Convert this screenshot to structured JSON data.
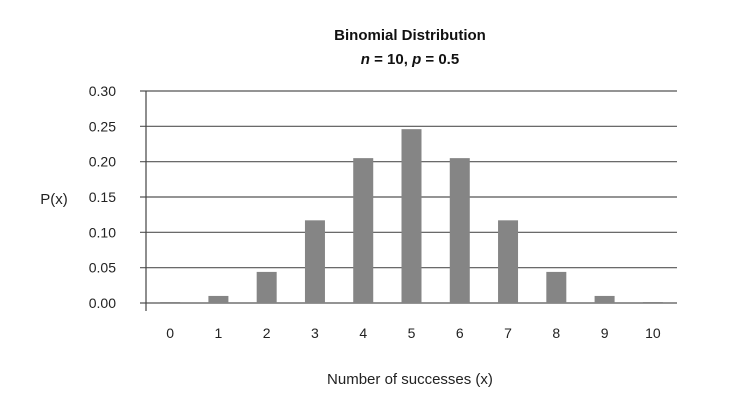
{
  "chart_data": {
    "type": "bar",
    "title": "Binomial Distribution",
    "subtitle_parts": [
      {
        "text": "n",
        "italic": true
      },
      {
        "text": " = 10, ",
        "italic": false
      },
      {
        "text": "p",
        "italic": true
      },
      {
        "text": " = 0.5",
        "italic": false
      }
    ],
    "xlabel": "Number of successes (x)",
    "ylabel": "P(x)",
    "categories": [
      "0",
      "1",
      "2",
      "3",
      "4",
      "5",
      "6",
      "7",
      "8",
      "9",
      "10"
    ],
    "values": [
      0.001,
      0.01,
      0.044,
      0.117,
      0.205,
      0.246,
      0.205,
      0.117,
      0.044,
      0.01,
      0.001
    ],
    "ylim": [
      0,
      0.3
    ],
    "yticks": [
      "0.00",
      "0.05",
      "0.10",
      "0.15",
      "0.20",
      "0.25",
      "0.30"
    ],
    "grid": true,
    "bar_color": "#858585"
  }
}
